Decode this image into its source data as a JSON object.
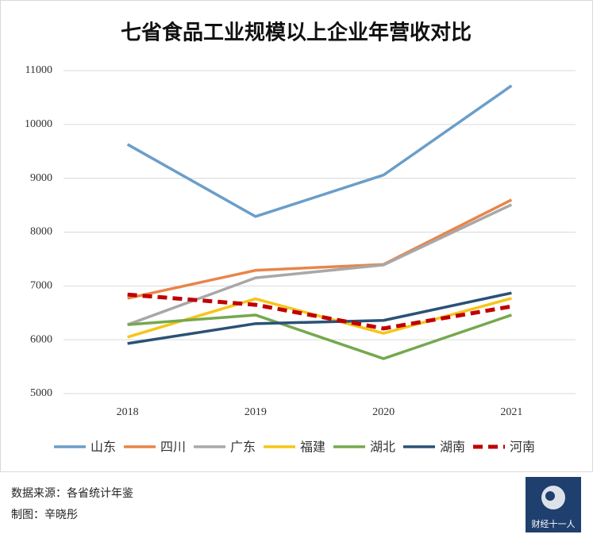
{
  "chart_data": {
    "type": "line",
    "title": "七省食品工业规模以上企业年营收对比",
    "categories": [
      "2018",
      "2019",
      "2020",
      "2021"
    ],
    "series": [
      {
        "name": "山东",
        "color": "#6b9ec9",
        "values": [
          9630,
          8290,
          9060,
          10720
        ]
      },
      {
        "name": "四川",
        "color": "#e8854a",
        "values": [
          6770,
          7290,
          7400,
          8600
        ]
      },
      {
        "name": "广东",
        "color": "#a8a8a8",
        "values": [
          6280,
          7150,
          7390,
          8510
        ]
      },
      {
        "name": "福建",
        "color": "#f5c518",
        "values": [
          6050,
          6760,
          6120,
          6770
        ]
      },
      {
        "name": "湖北",
        "color": "#76a84e",
        "values": [
          6280,
          6460,
          5650,
          6460
        ]
      },
      {
        "name": "湖南",
        "color": "#2b5176",
        "values": [
          5930,
          6300,
          6360,
          6870
        ]
      },
      {
        "name": "河南",
        "color": "#c00000",
        "dashed": true,
        "values": [
          6840,
          6650,
          6210,
          6620
        ]
      }
    ],
    "ylim": [
      5000,
      11000
    ],
    "yticks": [
      5000,
      6000,
      7000,
      8000,
      9000,
      10000,
      11000
    ],
    "grid": true
  },
  "footer": {
    "source": "数据来源：各省统计年鉴",
    "author": "制图：辛晓彤",
    "logo": "财经十一人"
  }
}
